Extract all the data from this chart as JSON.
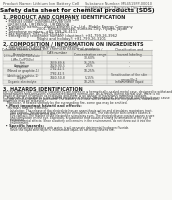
{
  "bg_color": "#f8f8f5",
  "header_top_left": "Product Name: Lithium Ion Battery Cell",
  "header_top_right": "Substance Number: M54519FP-00010\nEstablishment / Revision: Dec.7.2010",
  "title": "Safety data sheet for chemical products (SDS)",
  "section1_title": "1. PRODUCT AND COMPANY IDENTIFICATION",
  "section1_lines": [
    "  • Product name: Lithium Ion Battery Cell",
    "  • Product code: Cylindrical-type cell",
    "    UR18650A, UR18650L, UR18650A",
    "  • Company name:     Sanyo Electric Co., Ltd., Mobile Energy Company",
    "  • Address:           2001, Kamikodanaka, Sumairu-City, Hyogo, Japan",
    "  • Telephone number:  +81-799-26-4111",
    "  • Fax number: +81-799-26-4121",
    "  • Emergency telephone number (daytime): +81-799-26-3962",
    "                              (Night and holiday): +81-799-26-3101"
  ],
  "section2_title": "2. COMPOSITION / INFORMATION ON INGREDIENTS",
  "section2_sub": "  • Substance or preparation: Preparation",
  "section2_sub2": "  • Information about the chemical nature of product:",
  "table_col_names": [
    "Common chemical name /\nBrand name",
    "CAS number",
    "Concentration /\nConcentration range",
    "Classification and\nhazard labeling"
  ],
  "table_rows": [
    [
      "Lithium cobalt tantalate\n(LiMn-Co(PO4)x)",
      "-",
      "30-60%",
      ""
    ],
    [
      "Iron",
      "7439-89-6",
      "15-25%",
      "-"
    ],
    [
      "Aluminium",
      "7429-90-5",
      "2-5%",
      "-"
    ],
    [
      "Graphite\n(Mined or graphite-1)\n(Artificial graphite-1)",
      "7782-42-5\n7782-42-5",
      "10-25%",
      ""
    ],
    [
      "Copper",
      "7440-50-8",
      "5-15%",
      "Sensitisation of the skin\ngroup No.2"
    ],
    [
      "Organic electrolyte",
      "-",
      "10-25%",
      "Inflammable liquid"
    ]
  ],
  "section3_title": "3. HAZARDS IDENTIFICATION",
  "section3_para": [
    "For the battery cell, chemical substances are stored in a hermetically-sealed metal case, designed to withstand",
    "temperatures and pressures encountered during normal use. As a result, during normal use, there is no",
    "physical danger of ignition or explosion and there is no danger of hazardous materials leakage.",
    "    However, if exposed to a fire, added mechanical shocks, decomposed, an electrical short-circuit may cause",
    "fire gas release cannot be operated. The battery cell case will be breached of fire-patterns, hazardous",
    "materials may be released.",
    "    Moreover, if heated strongly by the surrounding fire, some gas may be emitted."
  ],
  "section3_most": "  • Most important hazard and effects:",
  "section3_human": "    Human health effects:",
  "section3_human_lines": [
    "        Inhalation: The release of the electrolyte has an anaesthesia action and stimulates respiratory tract.",
    "        Skin contact: The release of the electrolyte stimulates a skin. The electrolyte skin contact causes a",
    "        sore and stimulation on the skin.",
    "        Eye contact: The release of the electrolyte stimulates eyes. The electrolyte eye contact causes a sore",
    "        and stimulation on the eye. Especially, a substance that causes a strong inflammation of the eye is",
    "        contained.",
    "        Environmental effects: Since a battery cell remains in the environment, do not throw out it into the",
    "        environment."
  ],
  "section3_specific": "  • Specific hazards:",
  "section3_specific_lines": [
    "        If the electrolyte contacts with water, it will generate detrimental hydrogen fluoride.",
    "        Since the liquid electrolyte is inflammable liquid, do not bring close to fire."
  ],
  "text_color": "#333333",
  "title_color": "#111111",
  "section_color": "#222222",
  "line_color": "#999999",
  "table_line_color": "#aaaaaa",
  "table_header_bg": "#e0e0d8",
  "header_font_color": "#555555"
}
